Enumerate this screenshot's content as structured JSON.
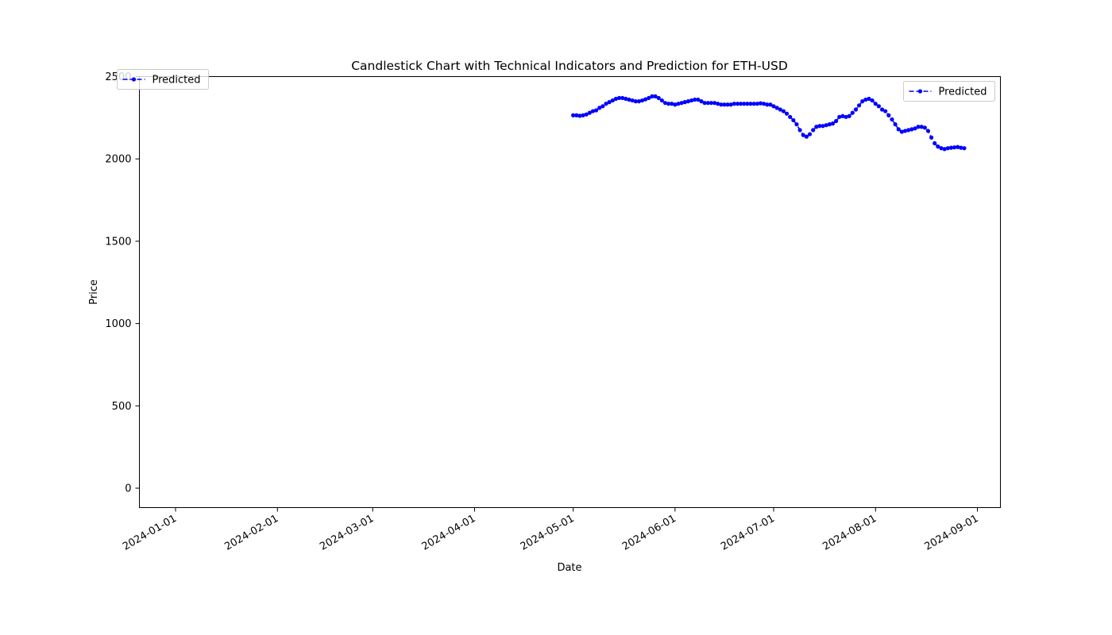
{
  "chart_data": {
    "type": "line",
    "title": "Candlestick Chart with Technical Indicators and Prediction for ETH-USD",
    "xlabel": "Date",
    "ylabel": "Price",
    "x_ticks": [
      "2024-01-01",
      "2024-02-01",
      "2024-03-01",
      "2024-04-01",
      "2024-05-01",
      "2024-06-01",
      "2024-07-01",
      "2024-08-01",
      "2024-09-01"
    ],
    "y_ticks": [
      0,
      500,
      1000,
      1500,
      2000,
      2500
    ],
    "ylim": [
      -118,
      2500
    ],
    "xlim": [
      "2023-12-21",
      "2024-09-08"
    ],
    "grid": false,
    "legends": [
      {
        "label": "Predicted",
        "placement": "top-left"
      },
      {
        "label": "Predicted",
        "placement": "top-right"
      }
    ],
    "series": [
      {
        "name": "Predicted",
        "color": "#0000ff",
        "line_style": "dashed",
        "marker": "circle",
        "x": [
          "2024-05-01",
          "2024-05-02",
          "2024-05-03",
          "2024-05-04",
          "2024-05-05",
          "2024-05-06",
          "2024-05-07",
          "2024-05-08",
          "2024-05-09",
          "2024-05-10",
          "2024-05-11",
          "2024-05-12",
          "2024-05-13",
          "2024-05-14",
          "2024-05-15",
          "2024-05-16",
          "2024-05-17",
          "2024-05-18",
          "2024-05-19",
          "2024-05-20",
          "2024-05-21",
          "2024-05-22",
          "2024-05-23",
          "2024-05-24",
          "2024-05-25",
          "2024-05-26",
          "2024-05-27",
          "2024-05-28",
          "2024-05-29",
          "2024-05-30",
          "2024-05-31",
          "2024-06-01",
          "2024-06-02",
          "2024-06-03",
          "2024-06-04",
          "2024-06-05",
          "2024-06-06",
          "2024-06-07",
          "2024-06-08",
          "2024-06-09",
          "2024-06-10",
          "2024-06-11",
          "2024-06-12",
          "2024-06-13",
          "2024-06-14",
          "2024-06-15",
          "2024-06-16",
          "2024-06-17",
          "2024-06-18",
          "2024-06-19",
          "2024-06-20",
          "2024-06-21",
          "2024-06-22",
          "2024-06-23",
          "2024-06-24",
          "2024-06-25",
          "2024-06-26",
          "2024-06-27",
          "2024-06-28",
          "2024-06-29",
          "2024-06-30",
          "2024-07-01",
          "2024-07-02",
          "2024-07-03",
          "2024-07-04",
          "2024-07-05",
          "2024-07-06",
          "2024-07-07",
          "2024-07-08",
          "2024-07-09",
          "2024-07-10",
          "2024-07-11",
          "2024-07-12",
          "2024-07-13",
          "2024-07-14",
          "2024-07-15",
          "2024-07-16",
          "2024-07-17",
          "2024-07-18",
          "2024-07-19",
          "2024-07-20",
          "2024-07-21",
          "2024-07-22",
          "2024-07-23",
          "2024-07-24",
          "2024-07-25",
          "2024-07-26",
          "2024-07-27",
          "2024-07-28",
          "2024-07-29",
          "2024-07-30",
          "2024-07-31",
          "2024-08-01",
          "2024-08-02",
          "2024-08-03",
          "2024-08-04",
          "2024-08-05",
          "2024-08-06",
          "2024-08-07",
          "2024-08-08",
          "2024-08-09",
          "2024-08-10",
          "2024-08-11",
          "2024-08-12",
          "2024-08-13",
          "2024-08-14",
          "2024-08-15",
          "2024-08-16",
          "2024-08-17",
          "2024-08-18",
          "2024-08-19",
          "2024-08-20",
          "2024-08-21",
          "2024-08-22",
          "2024-08-23",
          "2024-08-24",
          "2024-08-25",
          "2024-08-26",
          "2024-08-27",
          "2024-08-28"
        ],
        "values": [
          2265,
          2265,
          2262,
          2265,
          2270,
          2280,
          2290,
          2295,
          2310,
          2320,
          2335,
          2345,
          2355,
          2365,
          2370,
          2370,
          2365,
          2360,
          2355,
          2350,
          2350,
          2355,
          2362,
          2370,
          2380,
          2380,
          2370,
          2355,
          2340,
          2335,
          2335,
          2330,
          2335,
          2340,
          2345,
          2350,
          2355,
          2360,
          2360,
          2350,
          2340,
          2340,
          2340,
          2340,
          2335,
          2330,
          2330,
          2330,
          2330,
          2335,
          2335,
          2335,
          2335,
          2335,
          2335,
          2335,
          2335,
          2338,
          2335,
          2330,
          2330,
          2320,
          2310,
          2300,
          2290,
          2275,
          2255,
          2235,
          2210,
          2175,
          2145,
          2135,
          2150,
          2175,
          2195,
          2200,
          2200,
          2205,
          2210,
          2215,
          2230,
          2255,
          2260,
          2255,
          2260,
          2280,
          2300,
          2325,
          2350,
          2360,
          2365,
          2355,
          2335,
          2320,
          2300,
          2290,
          2265,
          2240,
          2210,
          2180,
          2165,
          2170,
          2175,
          2180,
          2185,
          2195,
          2195,
          2190,
          2170,
          2130,
          2095,
          2075,
          2065,
          2060,
          2065,
          2068,
          2070,
          2072,
          2068,
          2065
        ]
      }
    ]
  }
}
